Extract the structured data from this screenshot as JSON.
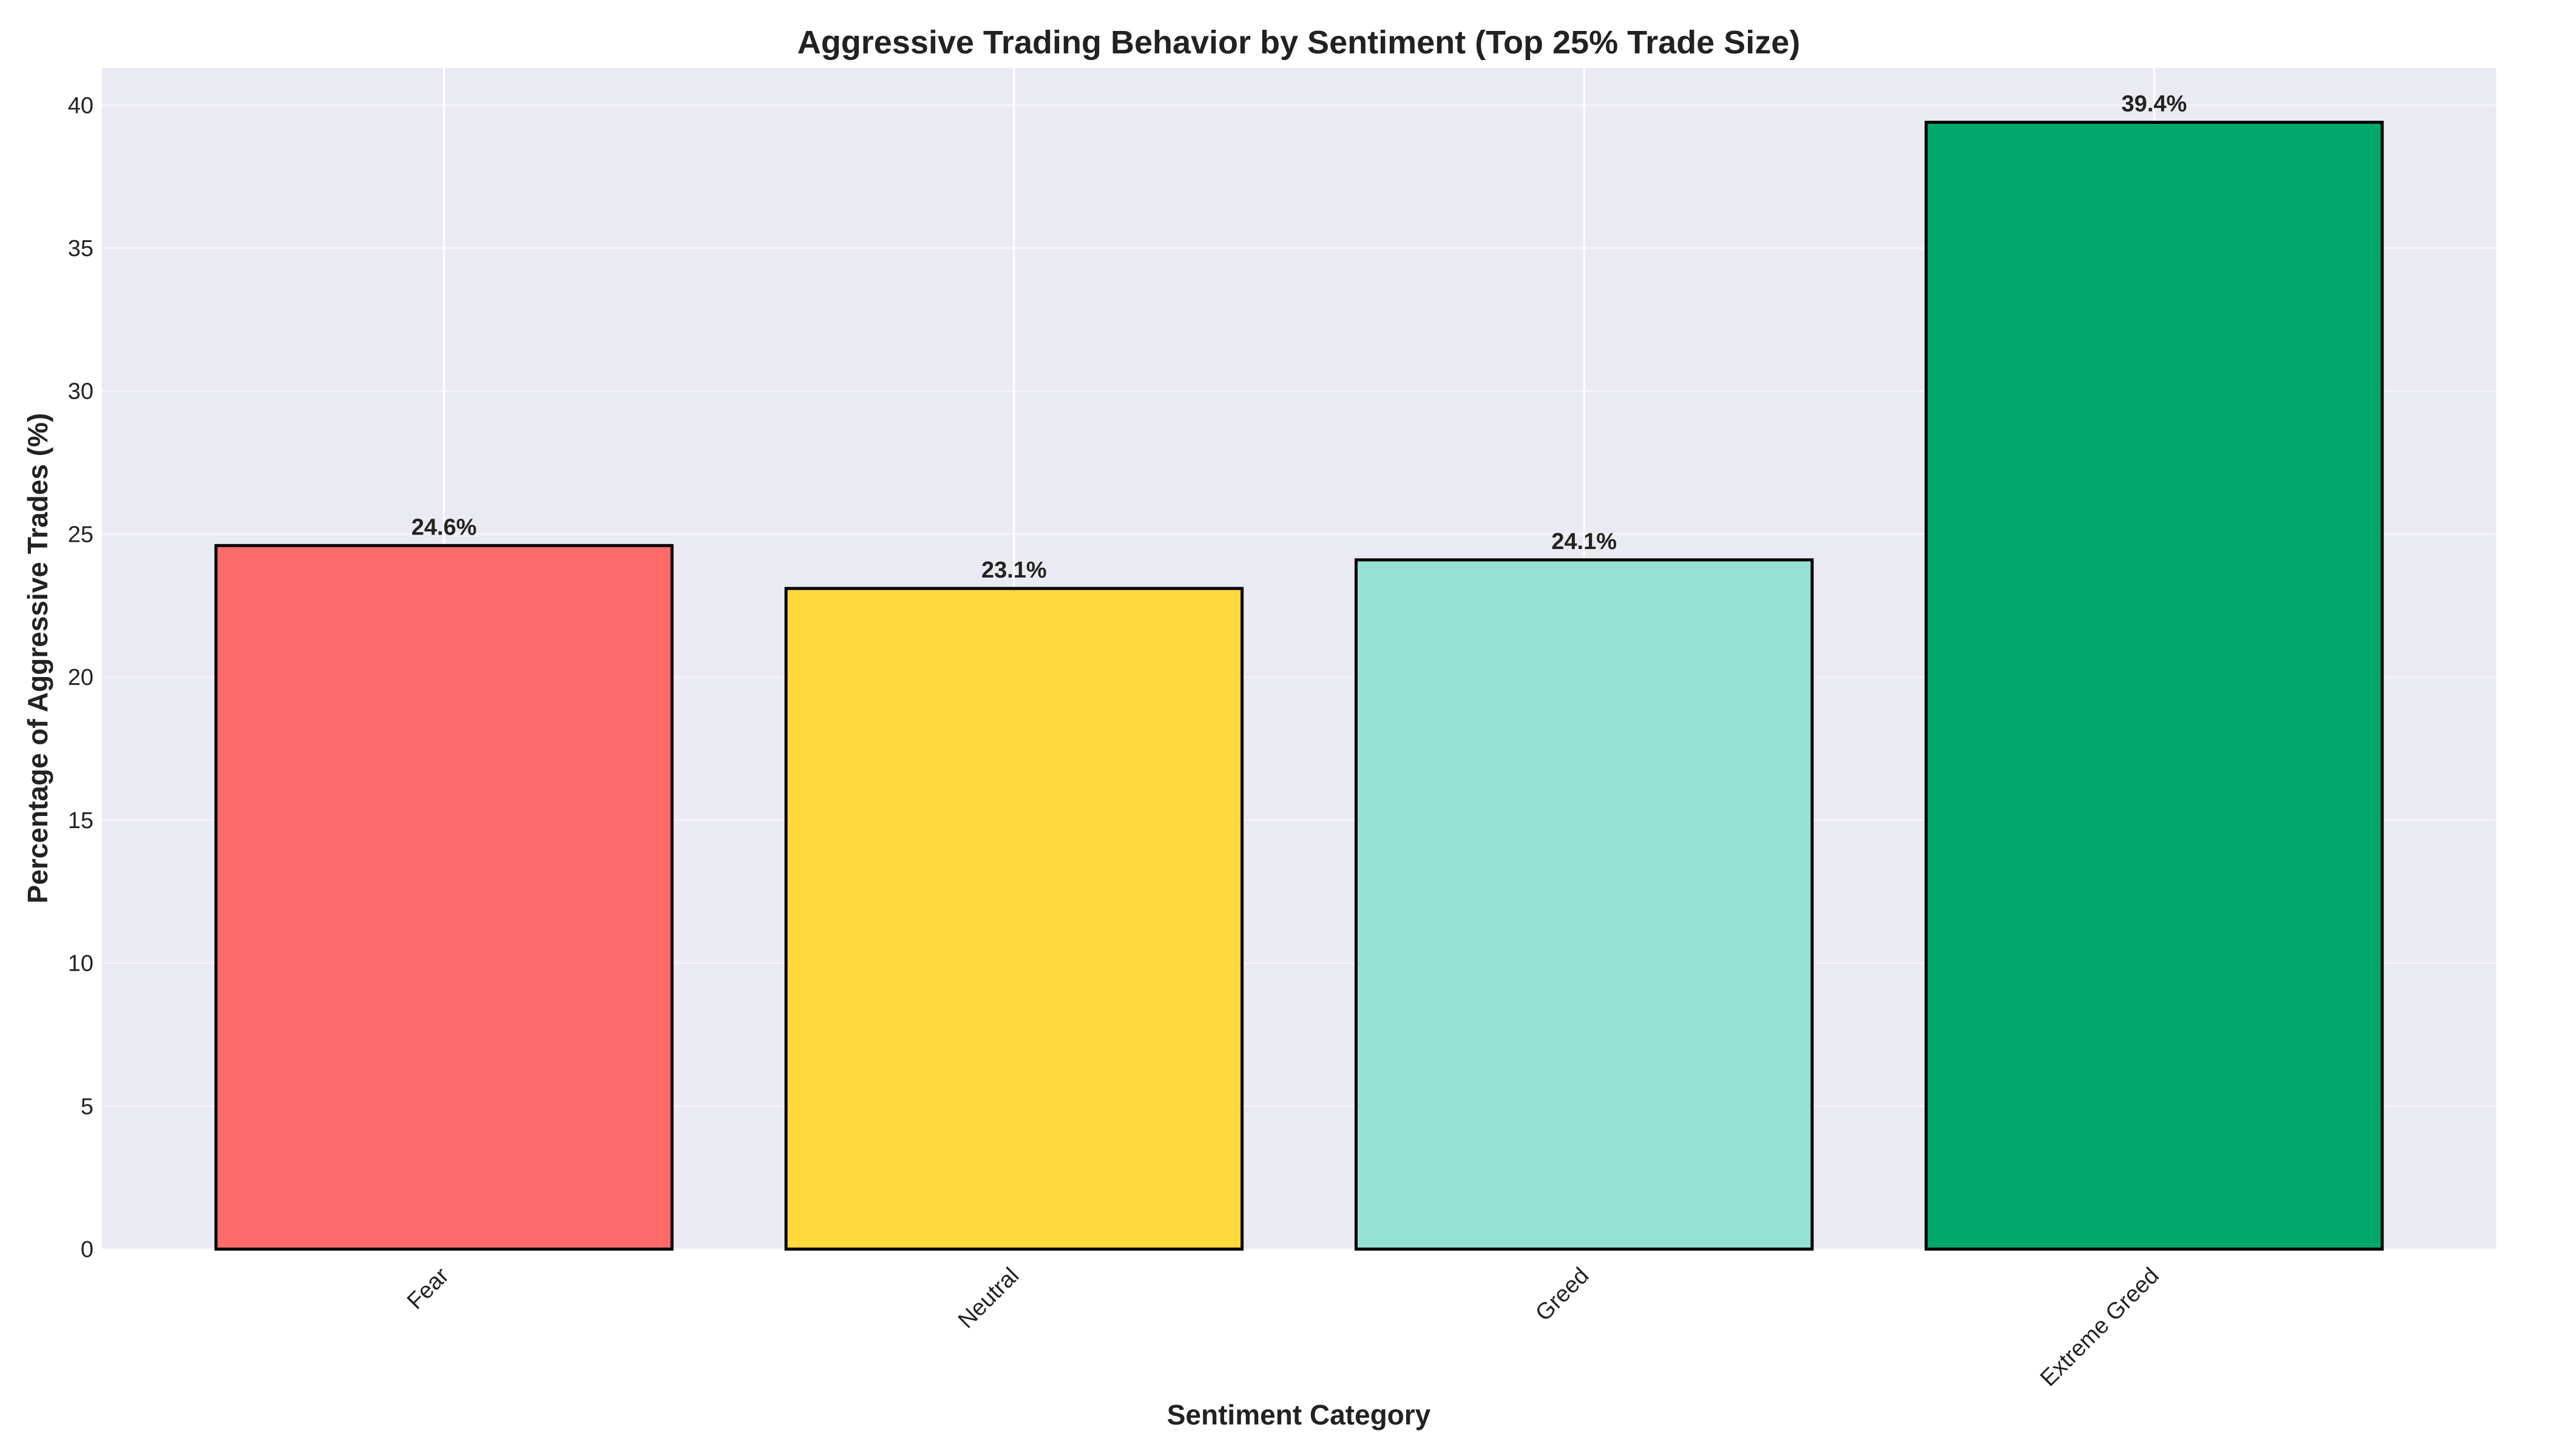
{
  "chart_data": {
    "type": "bar",
    "title": "Aggressive Trading Behavior by Sentiment (Top 25% Trade Size)",
    "xlabel": "Sentiment Category",
    "ylabel": "Percentage of Aggressive Trades (%)",
    "categories": [
      "Fear",
      "Neutral",
      "Greed",
      "Extreme Greed"
    ],
    "values": [
      24.6,
      23.1,
      24.1,
      39.4
    ],
    "data_labels": [
      "24.6%",
      "23.1%",
      "24.1%",
      "39.4%"
    ],
    "colors": [
      "#FF6B6B",
      "#FFD93D",
      "#95E1D3",
      "#00A86B"
    ],
    "ylim": [
      0,
      41.3
    ],
    "yticks": [
      0,
      5,
      10,
      15,
      20,
      25,
      30,
      35,
      40
    ],
    "grid": true,
    "plot_background": "#EAEAF2",
    "bar_edge_color": "#000000"
  }
}
